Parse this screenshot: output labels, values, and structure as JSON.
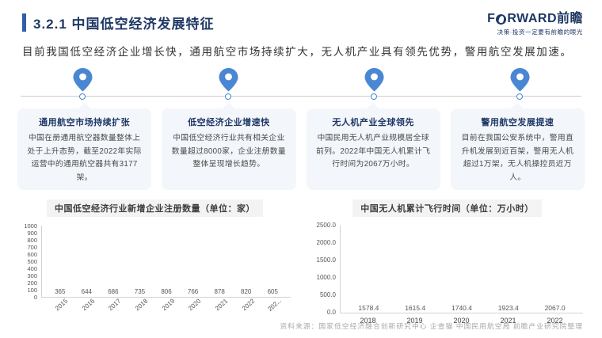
{
  "header": {
    "title": "3.2.1 中国低空经济发展特征",
    "logo": {
      "part1": "F",
      "part2": "RWARD前瞻",
      "tagline": "决策·投资一定要有前瞻的眼光"
    }
  },
  "intro": "目前我国低空经济企业增长快，通用航空市场持续扩大，无人机产业具有领先优势，警用航空发展加速。",
  "features": [
    {
      "title": "通用航空市场持续扩张",
      "body": "中国在册通用航空器数量整体上处于上升态势，截至2022年实际运营中的通用航空器共有3177架。"
    },
    {
      "title": "低空经济企业增速快",
      "body": "中国低空经济行业共有相关企业数量超过8000家，企业注册数量整体呈现增长趋势。"
    },
    {
      "title": "无人机产业全球领先",
      "body": "中国民用无人机产业规模居全球前列。2022年中国无人机累计飞行时间为2067万小时。"
    },
    {
      "title": "警用航空发展提速",
      "body": "目前在我国公安系统中，警用直升机发展到近百架，警用无人机超过1万架，无人机操控员近万人。"
    }
  ],
  "chart_data": [
    {
      "type": "bar",
      "title": "中国低空经济行业新增企业注册数量（单位：家）",
      "categories": [
        "2015",
        "2016",
        "2017",
        "2018",
        "2019",
        "2020",
        "2021",
        "2022",
        "202..."
      ],
      "values": [
        365,
        644,
        686,
        735,
        806,
        766,
        878,
        820,
        605
      ],
      "value_labels": [
        "365",
        "644",
        "686",
        "735",
        "806",
        "766",
        "878",
        "820",
        "605"
      ],
      "ylim": [
        0,
        1000
      ],
      "yticks": [
        "0",
        "100",
        "200",
        "300",
        "400",
        "500",
        "600",
        "700",
        "800",
        "900",
        "1000"
      ],
      "bar_color": "#1e3b7c",
      "legend": "none",
      "grid": "off"
    },
    {
      "type": "bar",
      "title": "中国无人机累计飞行时间（单位：万小时）",
      "categories": [
        "2018",
        "2019",
        "2020",
        "2021",
        "2022"
      ],
      "values": [
        1578.4,
        1615.4,
        1740.4,
        1923.4,
        2067.0
      ],
      "value_labels": [
        "1578.4",
        "1615.4",
        "1740.4",
        "1923.4",
        "2067.0"
      ],
      "ylim": [
        0,
        2500
      ],
      "yticks": [
        "0.0",
        "500.0",
        "1000.0",
        "1500.0",
        "2000.0",
        "2500.0"
      ],
      "bar_color": "#1e3b7c",
      "legend": "none",
      "grid": "off"
    }
  ],
  "source": "资料来源：国家低空经济融合创新研究中心 企查猫 中国民用航空局 前瞻产业研究院整理",
  "colors": {
    "accent": "#2e5fa8",
    "navy": "#1f3864",
    "bar": "#1e3b7c",
    "pin": "#4a87d3",
    "box_bg": "#f3f6fb"
  }
}
